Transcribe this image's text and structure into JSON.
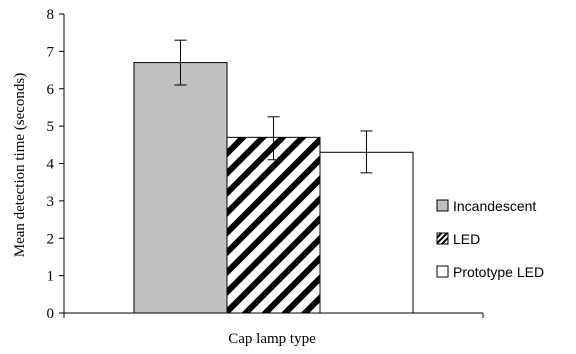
{
  "chart_data": {
    "type": "bar",
    "title": "",
    "xlabel": "Cap lamp type",
    "ylabel": "Mean detection time (seconds)",
    "ylim": [
      0,
      8
    ],
    "yticks": [
      "0",
      "1",
      "2",
      "3",
      "4",
      "5",
      "6",
      "7",
      "8"
    ],
    "grid": false,
    "legend_position": "right",
    "series": [
      {
        "name": "Incandescent",
        "value": 6.7,
        "error_low": 6.1,
        "error_high": 7.3,
        "fill": "#c0c0c0",
        "pattern": "solid"
      },
      {
        "name": "LED",
        "value": 4.7,
        "error_low": 4.1,
        "error_high": 5.25,
        "fill": "#ffffff",
        "pattern": "diagonal-hatch"
      },
      {
        "name": "Prototype LED",
        "value": 4.3,
        "error_low": 3.75,
        "error_high": 4.87,
        "fill": "#ffffff",
        "pattern": "solid"
      }
    ]
  }
}
